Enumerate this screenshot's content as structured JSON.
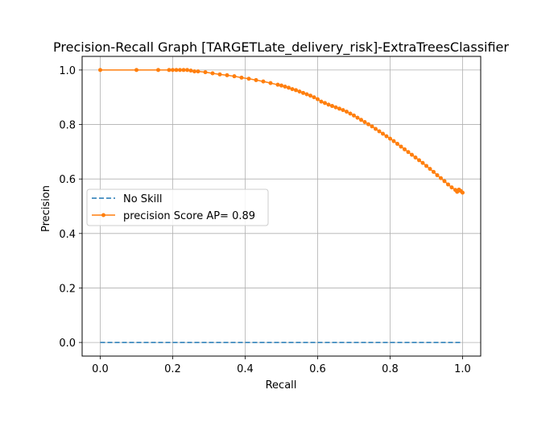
{
  "chart_data": {
    "type": "line",
    "title": "Precision-Recall Graph [TARGETLate_delivery_risk]-ExtraTreesClassifier",
    "xlabel": "Recall",
    "ylabel": "Precision",
    "xlim": [
      -0.05,
      1.05
    ],
    "ylim": [
      -0.05,
      1.05
    ],
    "xticks": [
      "0.0",
      "0.2",
      "0.4",
      "0.6",
      "0.8",
      "1.0"
    ],
    "yticks": [
      "0.0",
      "0.2",
      "0.4",
      "0.6",
      "0.8",
      "1.0"
    ],
    "grid": true,
    "legend_position": "center-left",
    "series": [
      {
        "name": "No Skill",
        "color": "#1f77b4",
        "style": "dashed",
        "marker": "none",
        "x": [
          0,
          1
        ],
        "y": [
          0,
          0
        ]
      },
      {
        "name": "precision Score AP= 0.89",
        "color": "#ff7f0e",
        "style": "solid",
        "marker": "dot",
        "x": [
          0.0,
          0.1,
          0.16,
          0.19,
          0.2,
          0.21,
          0.22,
          0.23,
          0.24,
          0.25,
          0.26,
          0.27,
          0.29,
          0.31,
          0.33,
          0.35,
          0.37,
          0.39,
          0.41,
          0.43,
          0.45,
          0.47,
          0.49,
          0.5,
          0.51,
          0.52,
          0.53,
          0.54,
          0.55,
          0.56,
          0.57,
          0.58,
          0.59,
          0.6,
          0.61,
          0.62,
          0.63,
          0.64,
          0.65,
          0.66,
          0.67,
          0.68,
          0.69,
          0.7,
          0.71,
          0.72,
          0.73,
          0.74,
          0.75,
          0.76,
          0.77,
          0.78,
          0.79,
          0.8,
          0.81,
          0.82,
          0.83,
          0.84,
          0.85,
          0.86,
          0.87,
          0.88,
          0.89,
          0.9,
          0.91,
          0.92,
          0.93,
          0.94,
          0.95,
          0.96,
          0.97,
          0.98,
          0.985,
          0.99,
          0.995,
          1.0
        ],
        "y": [
          1.0,
          1.0,
          1.0,
          1.0,
          1.0,
          1.0,
          1.0,
          1.0,
          1.0,
          0.998,
          0.995,
          0.995,
          0.992,
          0.988,
          0.984,
          0.981,
          0.977,
          0.972,
          0.968,
          0.963,
          0.958,
          0.952,
          0.946,
          0.943,
          0.939,
          0.935,
          0.93,
          0.926,
          0.921,
          0.916,
          0.911,
          0.906,
          0.9,
          0.893,
          0.884,
          0.879,
          0.873,
          0.868,
          0.863,
          0.858,
          0.853,
          0.847,
          0.84,
          0.833,
          0.825,
          0.817,
          0.809,
          0.801,
          0.793,
          0.784,
          0.775,
          0.766,
          0.757,
          0.748,
          0.739,
          0.729,
          0.719,
          0.709,
          0.699,
          0.689,
          0.679,
          0.669,
          0.659,
          0.648,
          0.637,
          0.626,
          0.614,
          0.603,
          0.592,
          0.58,
          0.569,
          0.56,
          0.553,
          0.561,
          0.556,
          0.55
        ]
      }
    ]
  }
}
